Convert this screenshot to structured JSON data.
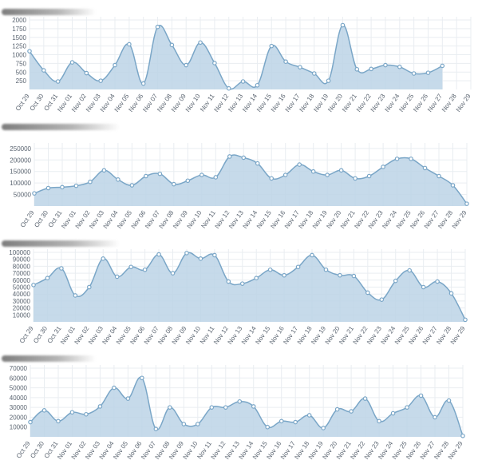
{
  "chart_data": [
    {
      "type": "area",
      "title": "",
      "xlabel": "",
      "ylabel": "",
      "ylim": [
        0,
        2000
      ],
      "yticks": [
        250,
        500,
        750,
        1000,
        1250,
        1500,
        1750,
        2000
      ],
      "categories": [
        "Oct 29",
        "Oct 30",
        "Oct 31",
        "Nov 01",
        "Nov 02",
        "Nov 03",
        "Nov 04",
        "Nov 05",
        "Nov 06",
        "Nov 07",
        "Nov 08",
        "Nov 09",
        "Nov 10",
        "Nov 11",
        "Nov 12",
        "Nov 13",
        "Nov 14",
        "Nov 15",
        "Nov 16",
        "Nov 17",
        "Nov 18",
        "Nov 19",
        "Nov 20",
        "Nov 21",
        "Nov 22",
        "Nov 23",
        "Nov 24",
        "Nov 25",
        "Nov 26",
        "Nov 27",
        "Nov 28",
        "Nov 29"
      ],
      "values": [
        1100,
        550,
        230,
        780,
        470,
        250,
        700,
        1300,
        170,
        1800,
        1280,
        700,
        1350,
        760,
        30,
        230,
        120,
        1250,
        800,
        640,
        460,
        250,
        1850,
        580,
        590,
        700,
        650,
        460,
        480,
        680,
        null,
        null
      ],
      "grid": true,
      "color": "#bcd4e6",
      "line_color": "#7aa6c7"
    },
    {
      "type": "area",
      "title": "",
      "xlabel": "",
      "ylabel": "",
      "ylim": [
        0,
        260000
      ],
      "yticks": [
        50000,
        100000,
        150000,
        200000,
        250000
      ],
      "categories": [
        "Oct 29",
        "Oct 30",
        "Oct 31",
        "Nov 01",
        "Nov 02",
        "Nov 03",
        "Nov 04",
        "Nov 05",
        "Nov 06",
        "Nov 07",
        "Nov 08",
        "Nov 09",
        "Nov 10",
        "Nov 11",
        "Nov 12",
        "Nov 13",
        "Nov 14",
        "Nov 15",
        "Nov 16",
        "Nov 17",
        "Nov 18",
        "Nov 19",
        "Nov 20",
        "Nov 21",
        "Nov 22",
        "Nov 23",
        "Nov 24",
        "Nov 25",
        "Nov 26",
        "Nov 27",
        "Nov 28",
        "Nov 29"
      ],
      "values": [
        55000,
        78000,
        82000,
        88000,
        105000,
        155000,
        115000,
        90000,
        130000,
        140000,
        95000,
        110000,
        135000,
        125000,
        215000,
        210000,
        185000,
        120000,
        135000,
        180000,
        150000,
        135000,
        155000,
        120000,
        130000,
        170000,
        205000,
        205000,
        165000,
        130000,
        90000,
        10000
      ],
      "grid": true,
      "color": "#bcd4e6",
      "line_color": "#7aa6c7"
    },
    {
      "type": "area",
      "title": "",
      "xlabel": "",
      "ylabel": "",
      "ylim": [
        0,
        100000
      ],
      "yticks": [
        10000,
        20000,
        30000,
        40000,
        50000,
        60000,
        70000,
        80000,
        90000,
        100000
      ],
      "categories": [
        "Oct 29",
        "Oct 30",
        "Oct 31",
        "Nov 01",
        "Nov 02",
        "Nov 03",
        "Nov 04",
        "Nov 05",
        "Nov 06",
        "Nov 07",
        "Nov 08",
        "Nov 09",
        "Nov 10",
        "Nov 11",
        "Nov 12",
        "Nov 13",
        "Nov 14",
        "Nov 15",
        "Nov 16",
        "Nov 17",
        "Nov 18",
        "Nov 19",
        "Nov 20",
        "Nov 21",
        "Nov 22",
        "Nov 23",
        "Nov 24",
        "Nov 25",
        "Nov 26",
        "Nov 27",
        "Nov 28",
        "Nov 29"
      ],
      "values": [
        53000,
        63000,
        77000,
        38000,
        50000,
        91000,
        65000,
        79000,
        75000,
        97000,
        70000,
        99000,
        91000,
        96000,
        58000,
        55000,
        63000,
        75000,
        67000,
        79000,
        96000,
        75000,
        67000,
        66000,
        42000,
        32000,
        59000,
        74000,
        50000,
        58000,
        41000,
        3000
      ],
      "grid": true,
      "color": "#bcd4e6",
      "line_color": "#7aa6c7"
    },
    {
      "type": "area",
      "title": "",
      "xlabel": "",
      "ylabel": "",
      "ylim": [
        0,
        70000
      ],
      "yticks": [
        10000,
        20000,
        30000,
        40000,
        50000,
        60000,
        70000
      ],
      "categories": [
        "Oct 29",
        "Oct 30",
        "Oct 31",
        "Nov 01",
        "Nov 02",
        "Nov 03",
        "Nov 04",
        "Nov 05",
        "Nov 06",
        "Nov 07",
        "Nov 08",
        "Nov 09",
        "Nov 10",
        "Nov 11",
        "Nov 12",
        "Nov 13",
        "Nov 14",
        "Nov 15",
        "Nov 16",
        "Nov 17",
        "Nov 18",
        "Nov 19",
        "Nov 20",
        "Nov 21",
        "Nov 22",
        "Nov 23",
        "Nov 24",
        "Nov 25",
        "Nov 26",
        "Nov 27",
        "Nov 28",
        "Nov 29"
      ],
      "values": [
        15000,
        27000,
        16000,
        25000,
        23000,
        31000,
        50000,
        39000,
        60000,
        8000,
        30000,
        13000,
        13000,
        30000,
        30000,
        36000,
        31000,
        10000,
        16000,
        15000,
        22000,
        9000,
        28000,
        26000,
        39000,
        16000,
        24000,
        30000,
        42000,
        20000,
        37000,
        1000
      ],
      "grid": true,
      "color": "#bcd4e6",
      "line_color": "#7aa6c7"
    }
  ]
}
